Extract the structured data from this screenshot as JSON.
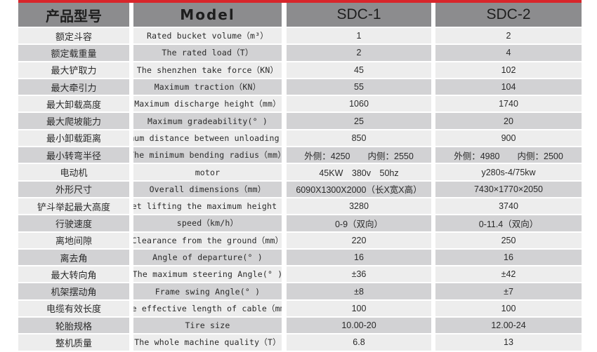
{
  "header": {
    "col1": "产品型号",
    "col2": "Model",
    "col3": "SDC-1",
    "col4": "SDC-2"
  },
  "rows": [
    {
      "cn": "额定斗容",
      "en": "Rated bucket volume（m³）",
      "sdc1": "1",
      "sdc2": "2"
    },
    {
      "cn": "额定载重量",
      "en": "The rated load（T）",
      "sdc1": "2",
      "sdc2": "4"
    },
    {
      "cn": "最大铲取力",
      "en": "The shenzhen take force（KN）",
      "sdc1": "45",
      "sdc2": "102"
    },
    {
      "cn": "最大牵引力",
      "en": "Maximum traction（KN）",
      "sdc1": "55",
      "sdc2": "104"
    },
    {
      "cn": "最大卸载高度",
      "en": "Maximum discharge height（mm）",
      "sdc1": "1060",
      "sdc2": "1740"
    },
    {
      "cn": "最大爬坡能力",
      "en": "Maximum gradeability(° )",
      "sdc1": "25",
      "sdc2": "20"
    },
    {
      "cn": "最小卸载距离",
      "en": "Minimum distance between unloading（mm）",
      "sdc1": "850",
      "sdc2": "900"
    },
    {
      "cn": "最小转弯半径",
      "en": "The minimum bending radius（mm）",
      "sdc1": "外侧：4250　　内侧：2550",
      "sdc2": "外侧：4980　　内侧：2500"
    },
    {
      "cn": "电动机",
      "en": "motor",
      "sdc1": "45KW　380v　50hz",
      "sdc2": "y280s-4/75kw"
    },
    {
      "cn": "外形尺寸",
      "en": "Overall dimensions（mm）",
      "sdc1": "6090X1300X2000（长X宽X高）",
      "sdc2": "7430×1770×2050"
    },
    {
      "cn": "铲斗举起最大高度",
      "en": "Bucket lifting the maximum height（mm）",
      "sdc1": "3280",
      "sdc2": "3740"
    },
    {
      "cn": "行驶速度",
      "en": "speed（km/h）",
      "sdc1": "0-9（双向）",
      "sdc2": "0-11.4（双向）"
    },
    {
      "cn": "离地间隙",
      "en": "Clearance from the ground（mm）",
      "sdc1": "220",
      "sdc2": "250"
    },
    {
      "cn": "离去角",
      "en": "Angle of departure(° )",
      "sdc1": "16",
      "sdc2": "16"
    },
    {
      "cn": "最大转向角",
      "en": "The maximum steering Angle(° )",
      "sdc1": "±36",
      "sdc2": "±42"
    },
    {
      "cn": "机架摆动角",
      "en": "Frame swing Angle(° )",
      "sdc1": "±8",
      "sdc2": "±7"
    },
    {
      "cn": "电缆有效长度",
      "en": "The effective length of cable（mm）",
      "sdc1": "100",
      "sdc2": "100"
    },
    {
      "cn": "轮胎规格",
      "en": "Tire size",
      "sdc1": "10.00-20",
      "sdc2": "12.00-24"
    },
    {
      "cn": "整机质量",
      "en": "The whole machine quality（T）",
      "sdc1": "6.8",
      "sdc2": "13"
    }
  ],
  "colors": {
    "accent": "#d8262b",
    "header_bg": "#8c8c8e",
    "row_light": "#ededed",
    "row_dark": "#d2d2d4"
  }
}
